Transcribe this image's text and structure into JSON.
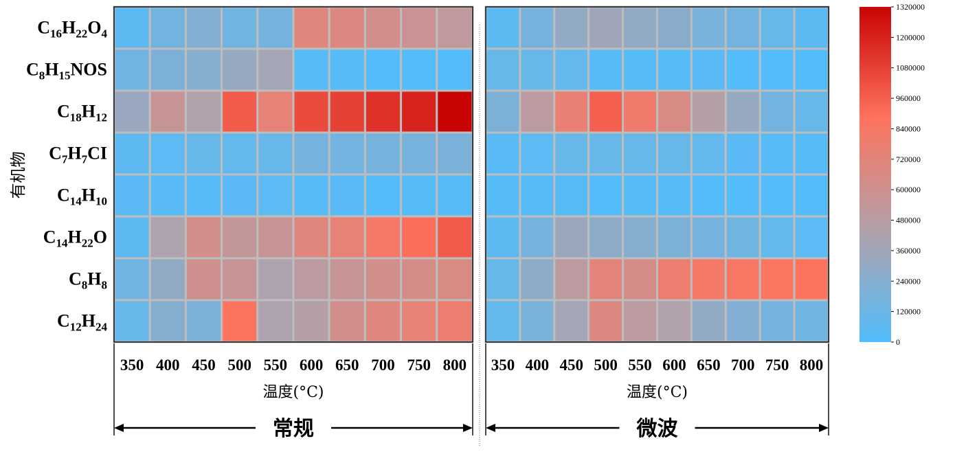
{
  "chart_data": {
    "type": "heatmap",
    "ylabel": "有机物",
    "colorscale": {
      "min": 0,
      "max": 1320000,
      "ticks": [
        "0",
        "120000",
        "240000",
        "360000",
        "480000",
        "600000",
        "720000",
        "840000",
        "960000",
        "1080000",
        "1200000",
        "1320000"
      ],
      "colors": [
        "#52bdfc",
        "#b1a1aa",
        "#fe735e",
        "#c90404"
      ]
    },
    "rows": [
      {
        "formula": [
          "C",
          "16",
          "H",
          "22",
          "O",
          "4"
        ]
      },
      {
        "formula": [
          "C",
          "8",
          "H",
          "15",
          "NOS"
        ]
      },
      {
        "formula": [
          "C",
          "18",
          "H",
          "12"
        ]
      },
      {
        "formula": [
          "C",
          "7",
          "H",
          "7",
          "CI"
        ]
      },
      {
        "formula": [
          "C",
          "14",
          "H",
          "10"
        ]
      },
      {
        "formula": [
          "C",
          "14",
          "H",
          "22",
          "O"
        ]
      },
      {
        "formula": [
          "C",
          "8",
          "H",
          "8"
        ]
      },
      {
        "formula": [
          "C",
          "12",
          "H",
          "24"
        ]
      }
    ],
    "panels": [
      {
        "group_label": "常规",
        "xlabel": "温度(°C)",
        "x": [
          "350",
          "400",
          "450",
          "500",
          "550",
          "600",
          "650",
          "700",
          "750",
          "800"
        ],
        "values": [
          [
            60000,
            150000,
            220000,
            140000,
            160000,
            700000,
            680000,
            620000,
            580000,
            520000
          ],
          [
            140000,
            200000,
            240000,
            320000,
            380000,
            20000,
            20000,
            10000,
            10000,
            10000
          ],
          [
            330000,
            560000,
            440000,
            980000,
            740000,
            1040000,
            1080000,
            1140000,
            1200000,
            1320000
          ],
          [
            60000,
            50000,
            100000,
            80000,
            100000,
            160000,
            150000,
            170000,
            170000,
            190000
          ],
          [
            40000,
            30000,
            20000,
            40000,
            50000,
            20000,
            30000,
            10000,
            20000,
            20000
          ],
          [
            60000,
            420000,
            620000,
            540000,
            560000,
            700000,
            740000,
            820000,
            900000,
            980000
          ],
          [
            140000,
            300000,
            600000,
            560000,
            420000,
            500000,
            560000,
            620000,
            640000,
            660000
          ],
          [
            100000,
            240000,
            200000,
            880000,
            420000,
            460000,
            620000,
            700000,
            740000,
            780000
          ]
        ]
      },
      {
        "group_label": "微波",
        "xlabel": "温度(°C)",
        "x": [
          "350",
          "400",
          "450",
          "500",
          "550",
          "600",
          "650",
          "700",
          "750",
          "800"
        ],
        "values": [
          [
            60000,
            160000,
            300000,
            360000,
            300000,
            260000,
            180000,
            150000,
            100000,
            60000
          ],
          [
            100000,
            100000,
            80000,
            20000,
            20000,
            20000,
            30000,
            10000,
            10000,
            10000
          ],
          [
            200000,
            500000,
            760000,
            960000,
            800000,
            660000,
            460000,
            320000,
            150000,
            100000
          ],
          [
            30000,
            50000,
            100000,
            100000,
            100000,
            100000,
            80000,
            40000,
            20000,
            20000
          ],
          [
            20000,
            20000,
            20000,
            10000,
            20000,
            20000,
            10000,
            10000,
            10000,
            10000
          ],
          [
            60000,
            160000,
            340000,
            280000,
            240000,
            200000,
            160000,
            140000,
            80000,
            50000
          ],
          [
            100000,
            280000,
            500000,
            720000,
            640000,
            780000,
            820000,
            840000,
            860000,
            880000
          ],
          [
            80000,
            180000,
            380000,
            680000,
            500000,
            440000,
            300000,
            220000,
            160000,
            140000
          ]
        ]
      }
    ]
  }
}
